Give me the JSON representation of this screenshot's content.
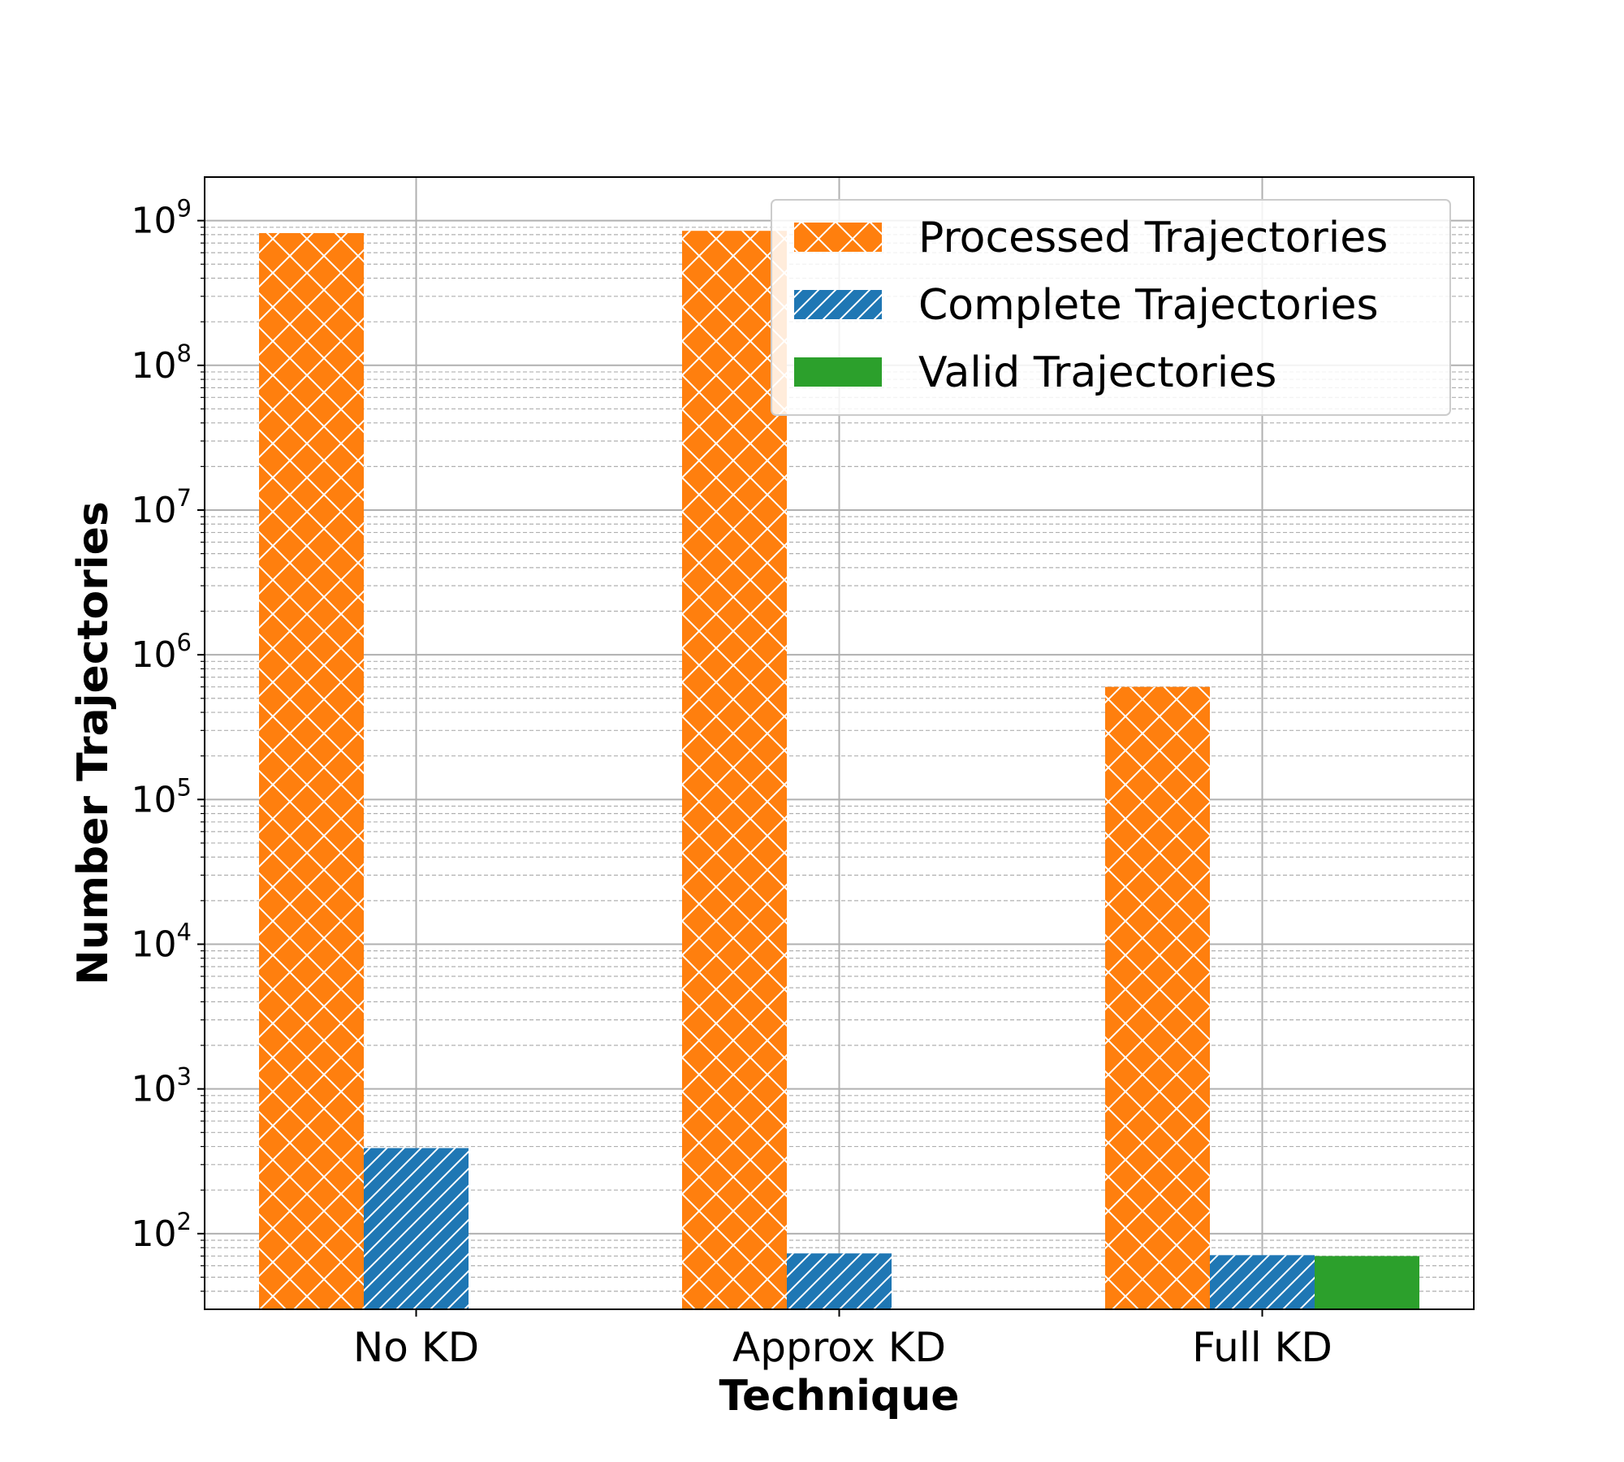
{
  "chart_data": {
    "type": "bar",
    "title": "",
    "xlabel": "Technique",
    "ylabel": "Number Trajectories",
    "yscale": "log",
    "ylim": [
      30,
      2000000000
    ],
    "yticks": [
      {
        "value": 100,
        "base": "10",
        "exp": "2"
      },
      {
        "value": 1000,
        "base": "10",
        "exp": "3"
      },
      {
        "value": 10000,
        "base": "10",
        "exp": "4"
      },
      {
        "value": 100000,
        "base": "10",
        "exp": "5"
      },
      {
        "value": 1000000,
        "base": "10",
        "exp": "6"
      },
      {
        "value": 10000000,
        "base": "10",
        "exp": "7"
      },
      {
        "value": 100000000,
        "base": "10",
        "exp": "8"
      },
      {
        "value": 1000000000,
        "base": "10",
        "exp": "9"
      }
    ],
    "categories": [
      "No KD",
      "Approx KD",
      "Full KD"
    ],
    "series": [
      {
        "name": "Processed Trajectories",
        "color": "#ff7f0e",
        "hatch": "crosshatch",
        "values": [
          820000000,
          850000000,
          600000
        ]
      },
      {
        "name": "Complete Trajectories",
        "color": "#1f77b4",
        "hatch": "diagonal",
        "values": [
          390,
          73,
          71
        ]
      },
      {
        "name": "Valid Trajectories",
        "color": "#2ca02c",
        "hatch": "none",
        "values": [
          null,
          null,
          70
        ]
      }
    ],
    "grid": true,
    "legend_position": "top-right"
  }
}
